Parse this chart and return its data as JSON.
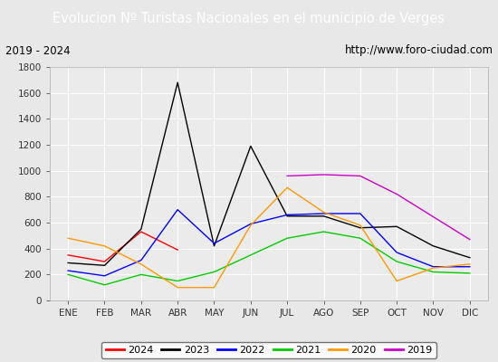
{
  "title": "Evolucion Nº Turistas Nacionales en el municipio de Verges",
  "subtitle_left": "2019 - 2024",
  "subtitle_right": "http://www.foro-ciudad.com",
  "months": [
    "ENE",
    "FEB",
    "MAR",
    "ABR",
    "MAY",
    "JUN",
    "JUL",
    "AGO",
    "SEP",
    "OCT",
    "NOV",
    "DIC"
  ],
  "series": {
    "2024": {
      "color": "#ff0000",
      "data": [
        350,
        300,
        530,
        390,
        null,
        null,
        null,
        null,
        null,
        null,
        null,
        null
      ]
    },
    "2023": {
      "color": "#000000",
      "data": [
        290,
        270,
        550,
        1680,
        420,
        1190,
        650,
        650,
        560,
        570,
        420,
        330
      ]
    },
    "2022": {
      "color": "#0000ff",
      "data": [
        230,
        190,
        310,
        700,
        440,
        590,
        660,
        670,
        670,
        370,
        260,
        260
      ]
    },
    "2021": {
      "color": "#00cc00",
      "data": [
        200,
        120,
        200,
        150,
        220,
        350,
        480,
        530,
        480,
        300,
        220,
        210
      ]
    },
    "2020": {
      "color": "#ff9900",
      "data": [
        480,
        420,
        280,
        100,
        100,
        580,
        870,
        680,
        580,
        150,
        250,
        280
      ]
    },
    "2019": {
      "color": "#cc00cc",
      "data": [
        null,
        null,
        null,
        null,
        null,
        null,
        960,
        970,
        960,
        820,
        null,
        470
      ]
    }
  },
  "ylim": [
    0,
    1800
  ],
  "yticks": [
    0,
    200,
    400,
    600,
    800,
    1000,
    1200,
    1400,
    1600,
    1800
  ],
  "title_bg_color": "#4f81bd",
  "title_color": "#ffffff",
  "plot_bg_color": "#ebebeb",
  "grid_color": "#ffffff",
  "fig_bg_color": "#e8e8e8",
  "subtitle_box_color": "#f5f5f5"
}
